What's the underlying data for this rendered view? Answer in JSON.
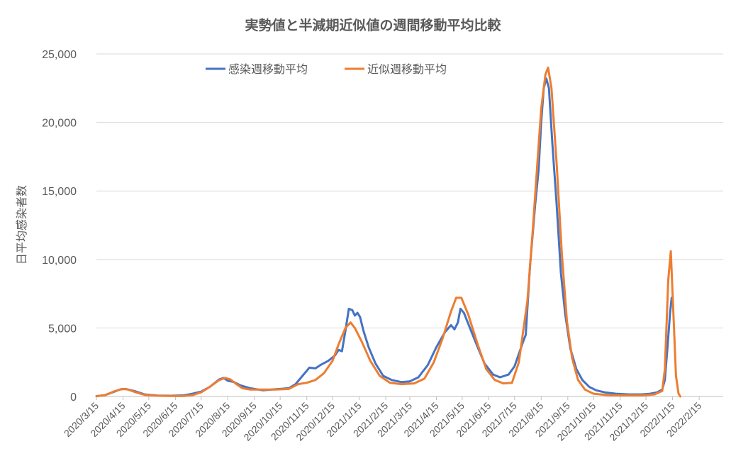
{
  "chart_data": {
    "type": "line",
    "title": "実勢値と半減期近似値の週間移動平均比較",
    "ylabel": "日平均感染者数",
    "xlabel": "",
    "ylim": [
      0,
      25000
    ],
    "yticks": [
      0,
      5000,
      10000,
      15000,
      20000,
      25000
    ],
    "ytick_labels": [
      "0",
      "5,000",
      "10,000",
      "15,000",
      "20,000",
      "25,000"
    ],
    "xlim": [
      "2020-03-15",
      "2022-03-15"
    ],
    "xticks": [
      "2020-03-15",
      "2020-04-15",
      "2020-05-15",
      "2020-06-15",
      "2020-07-15",
      "2020-08-15",
      "2020-09-15",
      "2020-10-15",
      "2020-11-15",
      "2020-12-15",
      "2021-01-15",
      "2021-02-15",
      "2021-03-15",
      "2021-04-15",
      "2021-05-15",
      "2021-06-15",
      "2021-07-15",
      "2021-08-15",
      "2021-09-15",
      "2021-10-15",
      "2021-11-15",
      "2021-12-15",
      "2022-01-15",
      "2022-02-15"
    ],
    "xtick_labels": [
      "2020/3/15",
      "2020/4/15",
      "2020/5/15",
      "2020/6/15",
      "2020/7/15",
      "2020/8/15",
      "2020/9/15",
      "2020/10/15",
      "2020/11/15",
      "2020/12/15",
      "2021/1/15",
      "2021/2/15",
      "2021/3/15",
      "2021/4/15",
      "2021/5/15",
      "2021/6/15",
      "2021/7/15",
      "2021/8/15",
      "2021/9/15",
      "2021/10/15",
      "2021/11/15",
      "2021/12/15",
      "2022/1/15",
      "2022/2/15"
    ],
    "grid": true,
    "legend_position": "top",
    "series": [
      {
        "name": "感染週移動平均",
        "color": "#4472c4",
        "points": [
          [
            "2020-03-15",
            20
          ],
          [
            "2020-03-25",
            100
          ],
          [
            "2020-04-05",
            350
          ],
          [
            "2020-04-12",
            520
          ],
          [
            "2020-04-18",
            550
          ],
          [
            "2020-04-28",
            400
          ],
          [
            "2020-05-10",
            150
          ],
          [
            "2020-05-25",
            60
          ],
          [
            "2020-06-10",
            50
          ],
          [
            "2020-06-25",
            80
          ],
          [
            "2020-07-05",
            200
          ],
          [
            "2020-07-15",
            350
          ],
          [
            "2020-07-25",
            700
          ],
          [
            "2020-08-05",
            1250
          ],
          [
            "2020-08-10",
            1350
          ],
          [
            "2020-08-15",
            1150
          ],
          [
            "2020-08-22",
            1050
          ],
          [
            "2020-08-30",
            800
          ],
          [
            "2020-09-10",
            600
          ],
          [
            "2020-09-25",
            450
          ],
          [
            "2020-10-05",
            500
          ],
          [
            "2020-10-15",
            550
          ],
          [
            "2020-10-25",
            600
          ],
          [
            "2020-11-02",
            900
          ],
          [
            "2020-11-10",
            1500
          ],
          [
            "2020-11-18",
            2100
          ],
          [
            "2020-11-25",
            2050
          ],
          [
            "2020-12-01",
            2300
          ],
          [
            "2020-12-10",
            2600
          ],
          [
            "2020-12-18",
            3000
          ],
          [
            "2020-12-22",
            3400
          ],
          [
            "2020-12-26",
            3300
          ],
          [
            "2020-12-30",
            4800
          ],
          [
            "2021-01-03",
            6400
          ],
          [
            "2021-01-07",
            6300
          ],
          [
            "2021-01-10",
            5900
          ],
          [
            "2021-01-13",
            6100
          ],
          [
            "2021-01-16",
            5800
          ],
          [
            "2021-01-20",
            4800
          ],
          [
            "2021-01-26",
            3600
          ],
          [
            "2021-02-03",
            2400
          ],
          [
            "2021-02-12",
            1500
          ],
          [
            "2021-02-22",
            1200
          ],
          [
            "2021-03-05",
            1050
          ],
          [
            "2021-03-15",
            1100
          ],
          [
            "2021-03-25",
            1400
          ],
          [
            "2021-04-05",
            2300
          ],
          [
            "2021-04-15",
            3600
          ],
          [
            "2021-04-25",
            4700
          ],
          [
            "2021-05-02",
            5200
          ],
          [
            "2021-05-06",
            4900
          ],
          [
            "2021-05-10",
            5400
          ],
          [
            "2021-05-13",
            6400
          ],
          [
            "2021-05-17",
            6100
          ],
          [
            "2021-05-24",
            5000
          ],
          [
            "2021-06-02",
            3600
          ],
          [
            "2021-06-10",
            2400
          ],
          [
            "2021-06-20",
            1600
          ],
          [
            "2021-06-28",
            1400
          ],
          [
            "2021-07-08",
            1600
          ],
          [
            "2021-07-15",
            2200
          ],
          [
            "2021-07-25",
            4000
          ],
          [
            "2021-07-28",
            4500
          ],
          [
            "2021-08-02",
            9500
          ],
          [
            "2021-08-08",
            14000
          ],
          [
            "2021-08-12",
            16500
          ],
          [
            "2021-08-15",
            20000
          ],
          [
            "2021-08-18",
            22500
          ],
          [
            "2021-08-21",
            23200
          ],
          [
            "2021-08-24",
            22500
          ],
          [
            "2021-08-28",
            18500
          ],
          [
            "2021-09-02",
            14000
          ],
          [
            "2021-09-07",
            9000
          ],
          [
            "2021-09-12",
            6000
          ],
          [
            "2021-09-18",
            3500
          ],
          [
            "2021-09-25",
            2000
          ],
          [
            "2021-10-02",
            1200
          ],
          [
            "2021-10-10",
            700
          ],
          [
            "2021-10-18",
            450
          ],
          [
            "2021-10-28",
            300
          ],
          [
            "2021-11-10",
            200
          ],
          [
            "2021-11-25",
            150
          ],
          [
            "2021-12-10",
            150
          ],
          [
            "2021-12-20",
            200
          ],
          [
            "2021-12-28",
            300
          ],
          [
            "2022-01-03",
            500
          ],
          [
            "2022-01-06",
            1200
          ],
          [
            "2022-01-09",
            3500
          ],
          [
            "2022-01-12",
            6000
          ],
          [
            "2022-01-14",
            7200
          ]
        ]
      },
      {
        "name": "近似週移動平均",
        "color": "#ed7d31",
        "points": [
          [
            "2020-03-15",
            20
          ],
          [
            "2020-03-25",
            100
          ],
          [
            "2020-04-05",
            380
          ],
          [
            "2020-04-14",
            550
          ],
          [
            "2020-04-20",
            520
          ],
          [
            "2020-04-30",
            300
          ],
          [
            "2020-05-10",
            120
          ],
          [
            "2020-05-25",
            50
          ],
          [
            "2020-06-10",
            30
          ],
          [
            "2020-06-25",
            30
          ],
          [
            "2020-07-05",
            100
          ],
          [
            "2020-07-15",
            300
          ],
          [
            "2020-07-25",
            700
          ],
          [
            "2020-08-05",
            1200
          ],
          [
            "2020-08-12",
            1350
          ],
          [
            "2020-08-18",
            1250
          ],
          [
            "2020-08-25",
            900
          ],
          [
            "2020-09-01",
            600
          ],
          [
            "2020-09-10",
            500
          ],
          [
            "2020-09-25",
            500
          ],
          [
            "2020-10-10",
            500
          ],
          [
            "2020-10-25",
            550
          ],
          [
            "2020-11-05",
            900
          ],
          [
            "2020-11-15",
            1000
          ],
          [
            "2020-11-25",
            1200
          ],
          [
            "2020-12-05",
            1700
          ],
          [
            "2020-12-15",
            2600
          ],
          [
            "2020-12-22",
            3800
          ],
          [
            "2020-12-30",
            5000
          ],
          [
            "2021-01-05",
            5400
          ],
          [
            "2021-01-10",
            5000
          ],
          [
            "2021-01-18",
            4000
          ],
          [
            "2021-01-28",
            2600
          ],
          [
            "2021-02-08",
            1500
          ],
          [
            "2021-02-20",
            1000
          ],
          [
            "2021-03-05",
            900
          ],
          [
            "2021-03-20",
            950
          ],
          [
            "2021-04-01",
            1300
          ],
          [
            "2021-04-12",
            2500
          ],
          [
            "2021-04-22",
            4200
          ],
          [
            "2021-05-02",
            6200
          ],
          [
            "2021-05-08",
            7200
          ],
          [
            "2021-05-14",
            7200
          ],
          [
            "2021-05-22",
            6000
          ],
          [
            "2021-06-02",
            3800
          ],
          [
            "2021-06-12",
            2000
          ],
          [
            "2021-06-22",
            1200
          ],
          [
            "2021-07-02",
            950
          ],
          [
            "2021-07-12",
            1000
          ],
          [
            "2021-07-20",
            2500
          ],
          [
            "2021-07-30",
            7000
          ],
          [
            "2021-08-05",
            12000
          ],
          [
            "2021-08-10",
            16500
          ],
          [
            "2021-08-15",
            21000
          ],
          [
            "2021-08-20",
            23500
          ],
          [
            "2021-08-23",
            24000
          ],
          [
            "2021-08-27",
            22500
          ],
          [
            "2021-09-02",
            17000
          ],
          [
            "2021-09-08",
            10500
          ],
          [
            "2021-09-14",
            5500
          ],
          [
            "2021-09-20",
            2800
          ],
          [
            "2021-09-27",
            1200
          ],
          [
            "2021-10-05",
            500
          ],
          [
            "2021-10-15",
            200
          ],
          [
            "2021-11-01",
            100
          ],
          [
            "2021-11-20",
            80
          ],
          [
            "2021-12-10",
            80
          ],
          [
            "2021-12-25",
            150
          ],
          [
            "2022-01-03",
            400
          ],
          [
            "2022-01-06",
            2000
          ],
          [
            "2022-01-10",
            8500
          ],
          [
            "2022-01-13",
            10600
          ],
          [
            "2022-01-16",
            6000
          ],
          [
            "2022-01-19",
            1500
          ],
          [
            "2022-01-22",
            200
          ],
          [
            "2022-01-24",
            0
          ]
        ]
      }
    ]
  }
}
